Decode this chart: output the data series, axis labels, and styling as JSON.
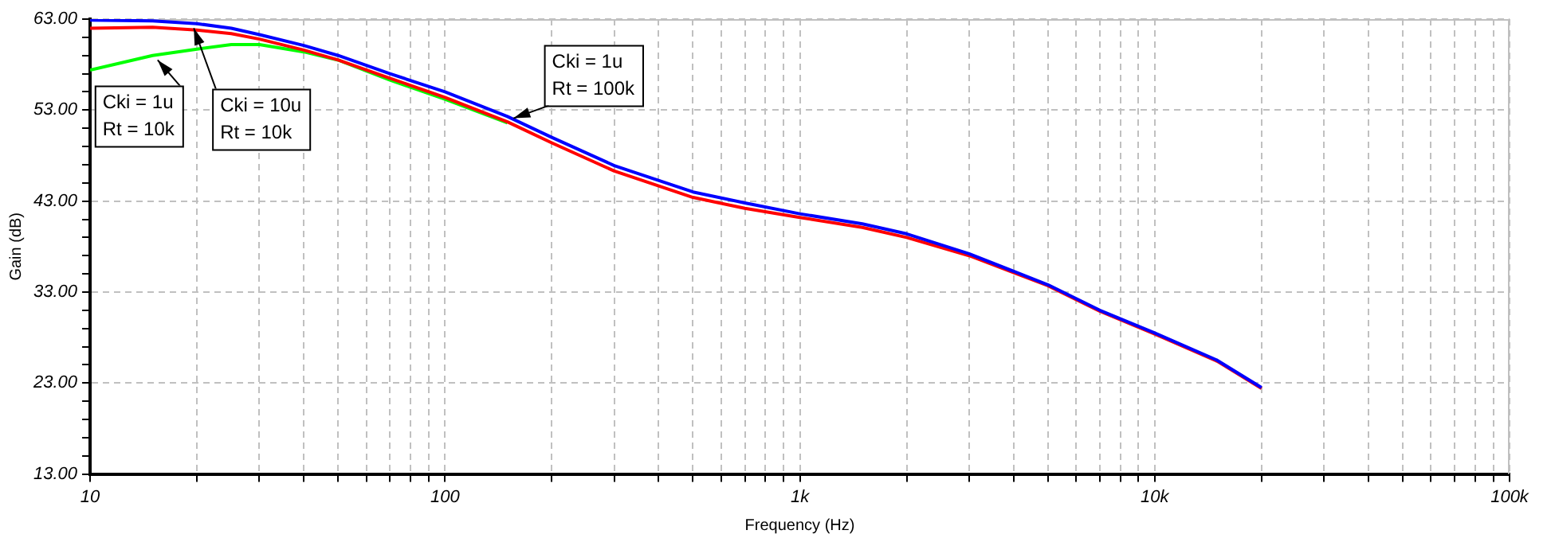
{
  "chart_data": {
    "type": "line",
    "xlabel": "Frequency (Hz)",
    "ylabel": "Gain (dB)",
    "x": [
      10,
      15,
      20,
      25,
      30,
      40,
      50,
      70,
      100,
      150,
      200,
      300,
      500,
      700,
      1000,
      1500,
      2000,
      3000,
      5000,
      7000,
      10000,
      15000,
      20000
    ],
    "series": [
      {
        "color": "#0000ff",
        "values": [
          62.9,
          62.8,
          62.5,
          62.0,
          61.3,
          60.1,
          59.0,
          57.0,
          55.0,
          52.3,
          50.0,
          46.9,
          44.0,
          42.8,
          41.6,
          40.5,
          39.4,
          37.2,
          33.8,
          31.0,
          28.5,
          25.5,
          22.5
        ]
      },
      {
        "color": "#ff0000",
        "values": [
          62.0,
          62.1,
          61.8,
          61.4,
          60.8,
          59.6,
          58.5,
          56.5,
          54.4,
          51.7,
          49.4,
          46.3,
          43.4,
          42.2,
          41.2,
          40.1,
          39.0,
          37.0,
          33.7,
          30.9,
          28.4,
          25.4,
          22.4
        ]
      },
      {
        "color": "#00ff00",
        "values": [
          57.4,
          59.0,
          59.7,
          60.2,
          60.2,
          59.4,
          58.5,
          56.3,
          54.2,
          51.6,
          null,
          null,
          null,
          null,
          null,
          null,
          null,
          null,
          null,
          null,
          null,
          null,
          null
        ]
      }
    ],
    "annotations": [
      {
        "text": "Cki = 1u\nRt = 10k",
        "x": 15.5,
        "y": 58.5
      },
      {
        "text": "Cki = 10u\nRt = 10k",
        "x": 19.6,
        "y": 62.0
      },
      {
        "text": "Cki = 1u\nRt = 100k",
        "x": 156,
        "y": 52.1
      }
    ],
    "log": "x",
    "xlim": [
      10,
      100000
    ],
    "xticks": [
      10,
      {
        "value": 20,
        "label": null
      },
      {
        "value": 30,
        "label": null
      },
      {
        "value": 40,
        "label": null
      },
      {
        "value": 50,
        "label": null
      },
      {
        "value": 60,
        "label": null
      },
      {
        "value": 70,
        "label": null
      },
      {
        "value": 80,
        "label": null
      },
      {
        "value": 90,
        "label": null
      },
      100,
      {
        "value": 200,
        "label": null
      },
      {
        "value": 300,
        "label": null
      },
      {
        "value": 400,
        "label": null
      },
      {
        "value": 500,
        "label": null
      },
      {
        "value": 600,
        "label": null
      },
      {
        "value": 700,
        "label": null
      },
      {
        "value": 800,
        "label": null
      },
      {
        "value": 900,
        "label": null
      },
      {
        "value": 1000,
        "label": "1k"
      },
      {
        "value": 2000,
        "label": null
      },
      {
        "value": 3000,
        "label": null
      },
      {
        "value": 4000,
        "label": null
      },
      {
        "value": 5000,
        "label": null
      },
      {
        "value": 6000,
        "label": null
      },
      {
        "value": 7000,
        "label": null
      },
      {
        "value": 8000,
        "label": null
      },
      {
        "value": 9000,
        "label": null
      },
      {
        "value": 10000,
        "label": "10k"
      },
      {
        "value": 20000,
        "label": null
      },
      {
        "value": 30000,
        "label": null
      },
      {
        "value": 40000,
        "label": null
      },
      {
        "value": 50000,
        "label": null
      },
      {
        "value": 60000,
        "label": null
      },
      {
        "value": 70000,
        "label": null
      },
      {
        "value": 80000,
        "label": null
      },
      {
        "value": 90000,
        "label": null
      },
      {
        "value": 100000,
        "label": "100k"
      }
    ],
    "ylim": [
      13,
      63
    ],
    "yticks": [
      {
        "value": 13,
        "label": "13.00"
      },
      {
        "value": 15,
        "label": null
      },
      {
        "value": 17,
        "label": null
      },
      {
        "value": 19,
        "label": null
      },
      {
        "value": 21,
        "label": null
      },
      {
        "value": 23,
        "label": "23.00"
      },
      {
        "value": 25,
        "label": null
      },
      {
        "value": 27,
        "label": null
      },
      {
        "value": 29,
        "label": null
      },
      {
        "value": 31,
        "label": null
      },
      {
        "value": 33,
        "label": "33.00"
      },
      {
        "value": 35,
        "label": null
      },
      {
        "value": 37,
        "label": null
      },
      {
        "value": 39,
        "label": null
      },
      {
        "value": 41,
        "label": null
      },
      {
        "value": 43,
        "label": "43.00"
      },
      {
        "value": 45,
        "label": null
      },
      {
        "value": 47,
        "label": null
      },
      {
        "value": 49,
        "label": null
      },
      {
        "value": 51,
        "label": null
      },
      {
        "value": 53,
        "label": "53.00"
      },
      {
        "value": 55,
        "label": null
      },
      {
        "value": 57,
        "label": null
      },
      {
        "value": 59,
        "label": null
      },
      {
        "value": 61,
        "label": null
      },
      {
        "value": 63,
        "label": "63.00"
      }
    ],
    "grid": true,
    "legend": false,
    "marker": "none",
    "line_style": "solid"
  }
}
